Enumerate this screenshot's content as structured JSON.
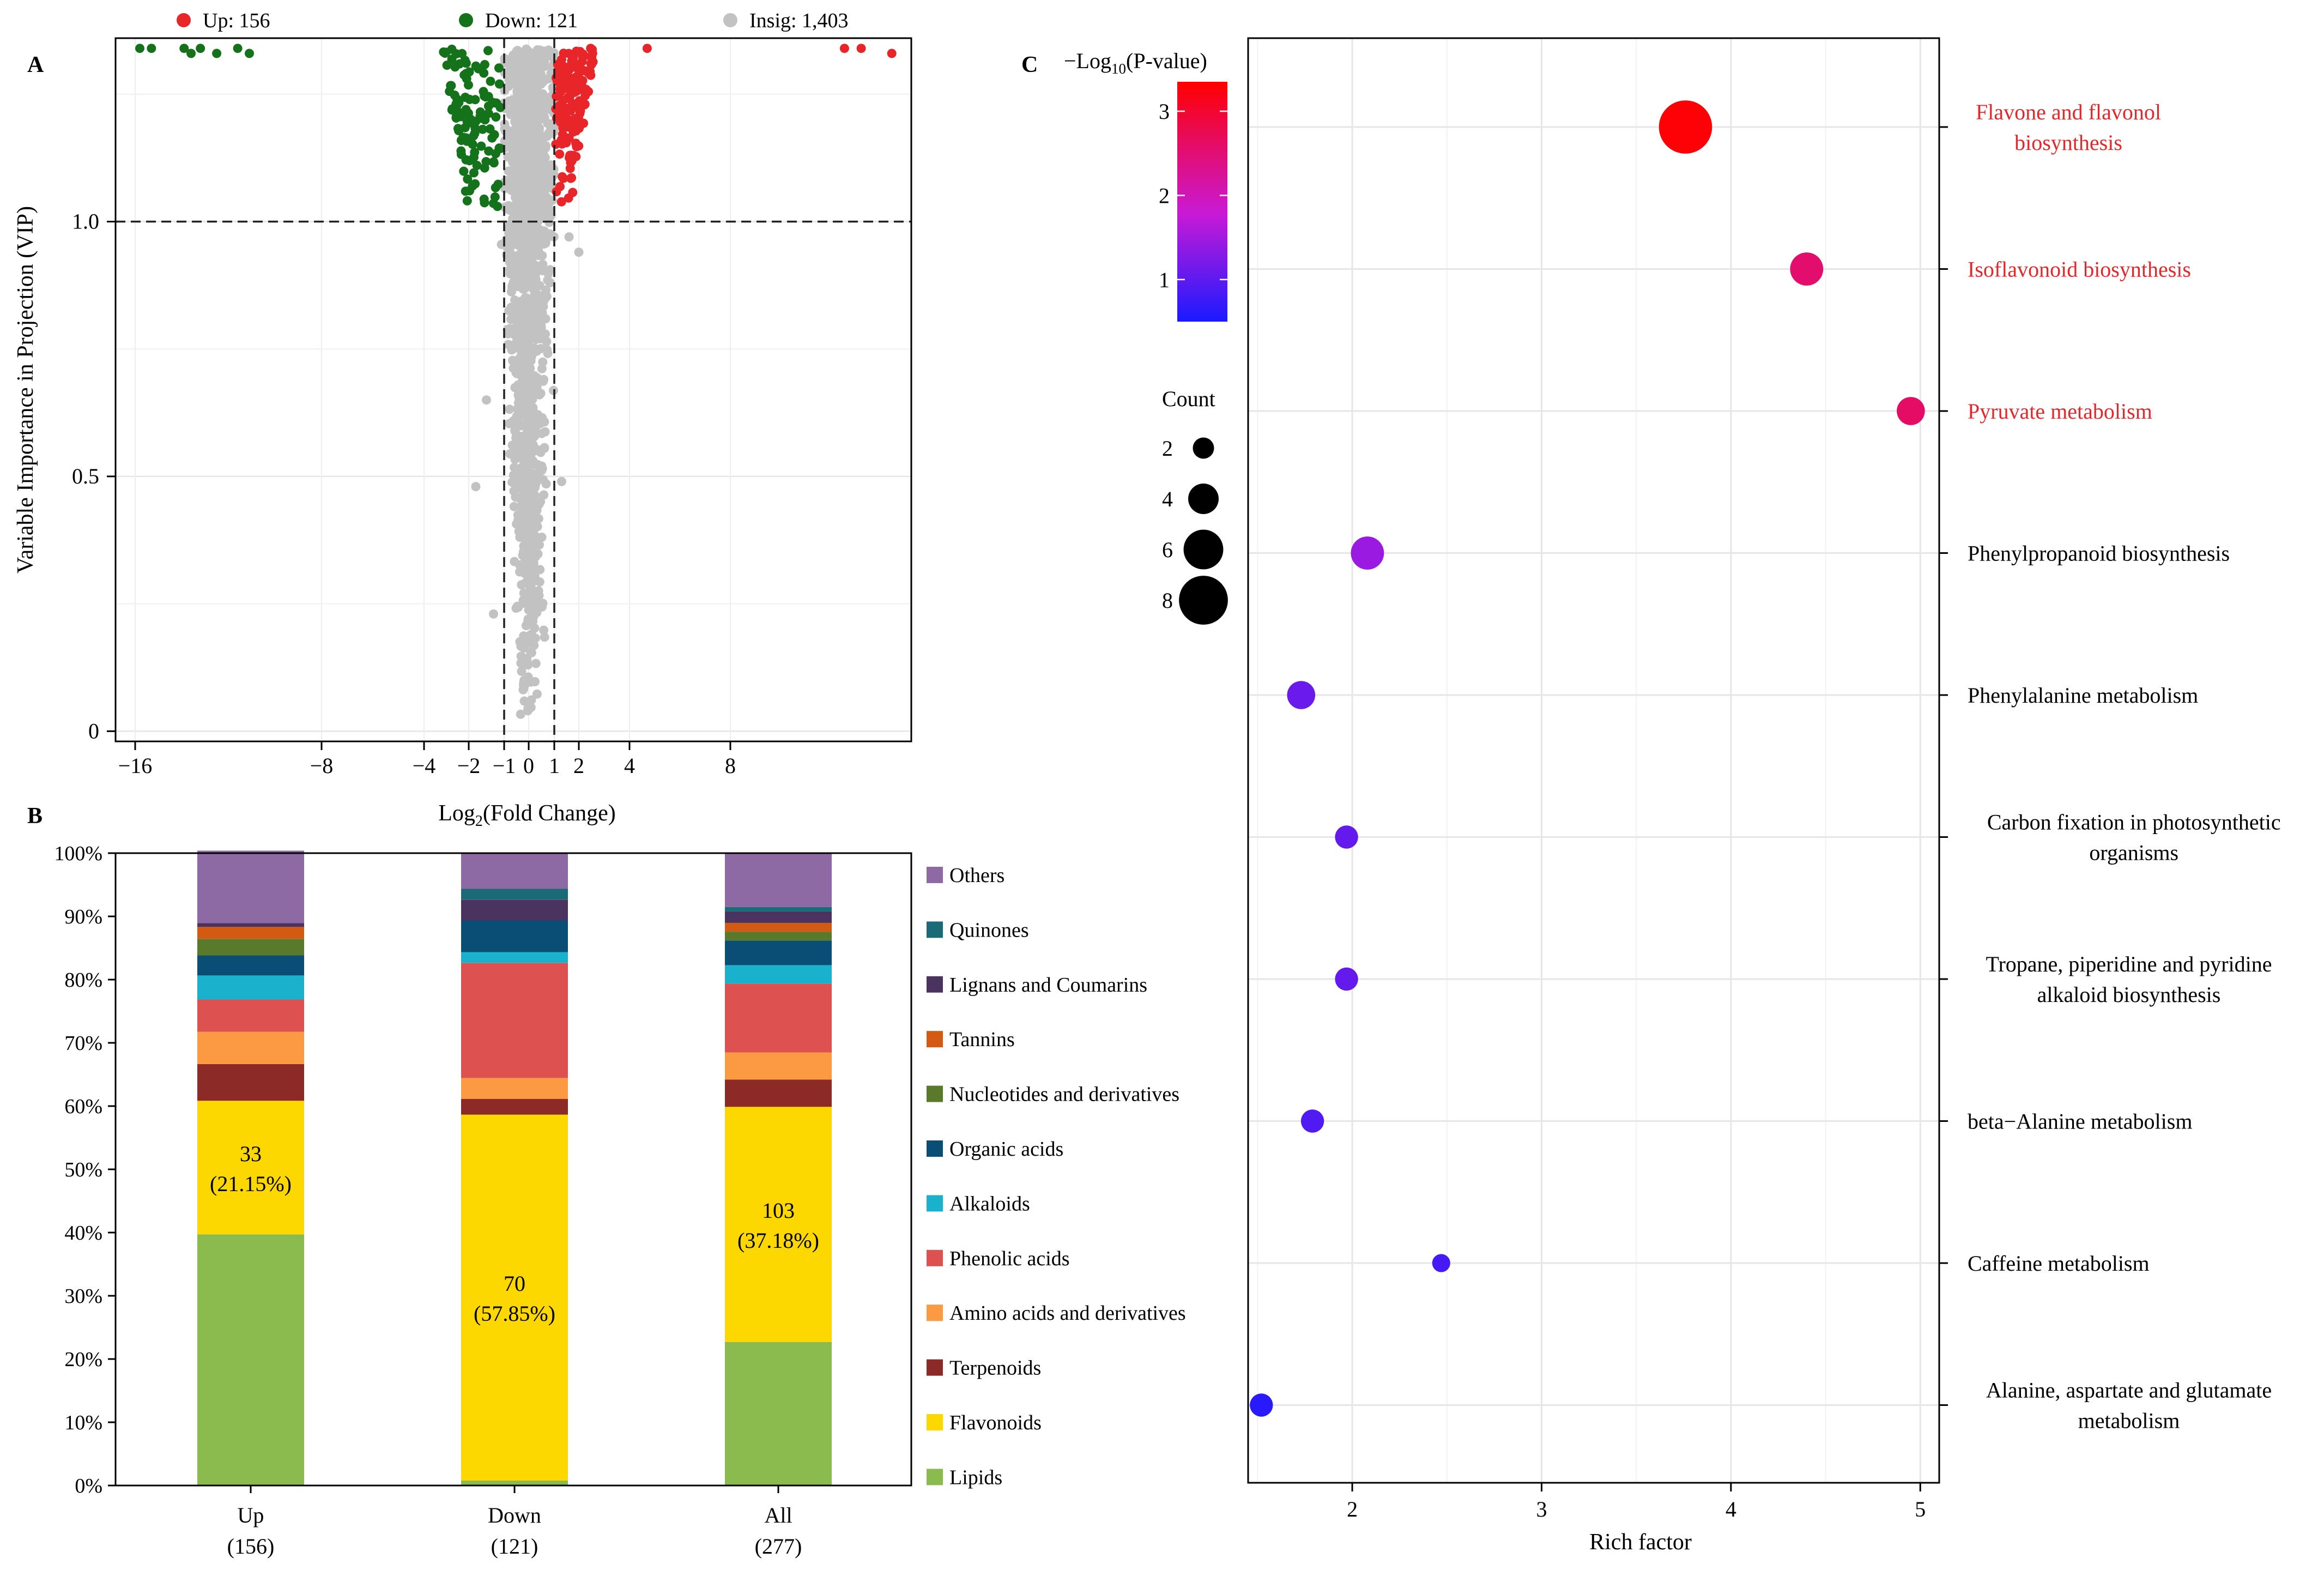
{
  "chart_data": [
    {
      "panel": "A",
      "type": "scatter",
      "title": "",
      "xlabel_main": "Log",
      "xlabel_sub": "2",
      "xlabel_rest": "(Fold Change)",
      "ylabel": "Variable Importance in Projection (VIP)",
      "xticks": [
        {
          "v": -16,
          "label": "−16"
        },
        {
          "v": -8,
          "label": "−8"
        },
        {
          "v": -4,
          "label": "−4"
        },
        {
          "v": -2,
          "label": "−2"
        },
        {
          "v": -1,
          "label": "−1"
        },
        {
          "v": 0,
          "label": "0"
        },
        {
          "v": 1,
          "label": "1"
        },
        {
          "v": 2,
          "label": "2"
        },
        {
          "v": 4,
          "label": "4"
        },
        {
          "v": 8,
          "label": "8"
        }
      ],
      "yticks": [
        {
          "v": 0,
          "label": "0"
        },
        {
          "v": 0.5,
          "label": "0.5"
        },
        {
          "v": 1.0,
          "label": "1.0"
        }
      ],
      "ylim": [
        -0.02,
        1.36
      ],
      "thresholds": {
        "vip": 1.0,
        "log2fc": [
          -1,
          1
        ]
      },
      "legend": [
        {
          "name": "Up",
          "label": "Up: 156",
          "color": "#e8262a",
          "count": 156
        },
        {
          "name": "Down",
          "label": "Down: 121",
          "color": "#14721a",
          "count": 121
        },
        {
          "name": "Insig",
          "label": "Insig: 1,403",
          "color": "#c2c2c2",
          "count": 1403
        }
      ],
      "outliers": {
        "down": [
          [
            -15.8,
            1.34
          ],
          [
            -15.3,
            1.34
          ],
          [
            -13.9,
            1.34
          ],
          [
            -13.6,
            1.33
          ],
          [
            -13.2,
            1.34
          ],
          [
            -12.5,
            1.33
          ],
          [
            -11.6,
            1.34
          ],
          [
            -11.1,
            1.33
          ]
        ],
        "up": [
          [
            4.7,
            1.34
          ],
          [
            12.1,
            1.34
          ],
          [
            12.7,
            1.34
          ],
          [
            13.8,
            1.33
          ]
        ]
      }
    },
    {
      "panel": "B",
      "type": "bar",
      "stacked": true,
      "title": "",
      "xlabel": "",
      "ylabel": "",
      "ylim": [
        0,
        100
      ],
      "yticks": [
        "0%",
        "10%",
        "20%",
        "30%",
        "40%",
        "50%",
        "60%",
        "70%",
        "80%",
        "90%",
        "100%"
      ],
      "categories": [
        {
          "name": "Up",
          "n": "(156)"
        },
        {
          "name": "Down",
          "n": "(121)"
        },
        {
          "name": "All",
          "n": "(277)"
        }
      ],
      "series": [
        {
          "name": "Lipids",
          "color": "#8bbb4f",
          "values": [
            39.7,
            0.8,
            22.7
          ]
        },
        {
          "name": "Flavonoids",
          "color": "#fdd800",
          "values": [
            21.15,
            57.85,
            37.18
          ]
        },
        {
          "name": "Terpenoids",
          "color": "#8c2a27",
          "values": [
            5.8,
            2.5,
            4.3
          ]
        },
        {
          "name": "Amino acids and derivatives",
          "color": "#fb9a43",
          "values": [
            5.1,
            3.3,
            4.3
          ]
        },
        {
          "name": "Phenolic acids",
          "color": "#dd5150",
          "values": [
            5.1,
            18.2,
            10.9
          ]
        },
        {
          "name": "Alkaloids",
          "color": "#1ab1cc",
          "values": [
            3.8,
            1.7,
            2.9
          ]
        },
        {
          "name": "Organic acids",
          "color": "#0b4e75",
          "values": [
            3.2,
            5.0,
            3.9
          ]
        },
        {
          "name": "Nucleotides and derivatives",
          "color": "#5a7a2b",
          "values": [
            2.6,
            0.0,
            1.4
          ]
        },
        {
          "name": "Tannins",
          "color": "#d35a13",
          "values": [
            1.9,
            0.0,
            1.4
          ]
        },
        {
          "name": "Lignans and Coumarins",
          "color": "#4a345f",
          "values": [
            0.6,
            3.3,
            1.8
          ]
        },
        {
          "name": "Quinones",
          "color": "#1a6a78",
          "values": [
            0.0,
            1.7,
            0.7
          ]
        },
        {
          "name": "Others",
          "color": "#8e6aa5",
          "values": [
            11.45,
            5.65,
            8.52
          ]
        }
      ],
      "annotations": [
        {
          "category": "Up",
          "line1": "33",
          "line2": "(21.15%)"
        },
        {
          "category": "Down",
          "line1": "70",
          "line2": "(57.85%)"
        },
        {
          "category": "All",
          "line1": "103",
          "line2": "(37.18%)"
        }
      ]
    },
    {
      "panel": "C",
      "type": "scatter",
      "title": "",
      "xlabel": "Rich factor",
      "ylabel": "",
      "xlim": [
        1.45,
        5.1
      ],
      "xticks": [
        2,
        3,
        4,
        5
      ],
      "color_scale_title_prefix": "−Log",
      "color_scale_title_sub": "10",
      "color_scale_title_rest": "(P-value)",
      "color_scale": {
        "min": 0.5,
        "max": 3.35,
        "ticks": [
          1,
          2,
          3
        ],
        "low_color": "#1a1aff",
        "mid_color": "#c81ad6",
        "high_color": "#ff0000"
      },
      "size_legend_title": "Count",
      "size_legend": [
        2,
        4,
        6,
        8
      ],
      "points": [
        {
          "pathway": [
            "Flavone and flavonol",
            "biosynthesis"
          ],
          "rich": 3.76,
          "neglog10p": 3.3,
          "count": 8,
          "highlight": true
        },
        {
          "pathway": [
            "Isoflavonoid biosynthesis"
          ],
          "rich": 4.4,
          "neglog10p": 2.55,
          "count": 4,
          "highlight": true
        },
        {
          "pathway": [
            "Pyruvate metabolism"
          ],
          "rich": 4.95,
          "neglog10p": 2.6,
          "count": 3,
          "highlight": true
        },
        {
          "pathway": [
            "Phenylpropanoid biosynthesis"
          ],
          "rich": 2.08,
          "neglog10p": 1.45,
          "count": 4,
          "highlight": false
        },
        {
          "pathway": [
            "Phenylalanine metabolism"
          ],
          "rich": 1.73,
          "neglog10p": 1.1,
          "count": 3,
          "highlight": false
        },
        {
          "pathway": [
            "Carbon fixation in photosynthetic",
            "organisms"
          ],
          "rich": 1.97,
          "neglog10p": 1.05,
          "count": 2,
          "highlight": false
        },
        {
          "pathway": [
            "Tropane, piperidine and pyridine",
            "alkaloid biosynthesis"
          ],
          "rich": 1.97,
          "neglog10p": 1.05,
          "count": 2,
          "highlight": false
        },
        {
          "pathway": [
            "beta−Alanine metabolism"
          ],
          "rich": 1.79,
          "neglog10p": 0.9,
          "count": 2,
          "highlight": false
        },
        {
          "pathway": [
            "Caffeine metabolism"
          ],
          "rich": 2.47,
          "neglog10p": 0.82,
          "count": 1,
          "highlight": false
        },
        {
          "pathway": [
            "Alanine, aspartate and glutamate",
            "metabolism"
          ],
          "rich": 1.52,
          "neglog10p": 0.6,
          "count": 2,
          "highlight": false
        }
      ]
    }
  ],
  "panel_labels": {
    "a": "A",
    "b": "B",
    "c": "C"
  },
  "colors": {
    "highlight_text": "#e8262a",
    "normal_text": "#000000",
    "grid": "#e6e6e6",
    "insig": "#c2c2c2"
  }
}
